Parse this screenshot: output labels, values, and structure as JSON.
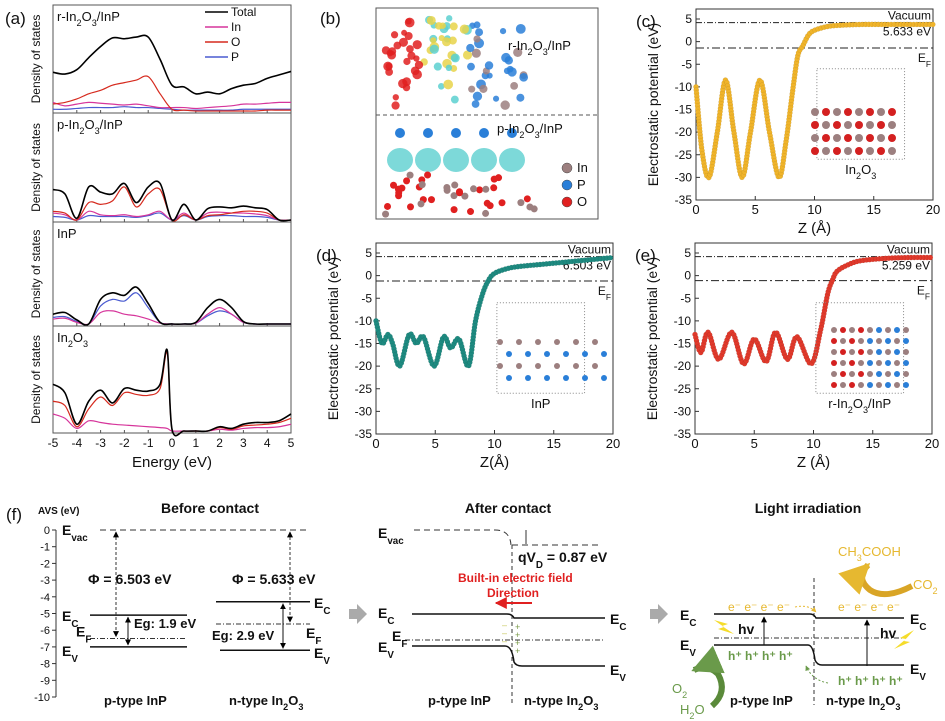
{
  "chart_data": [
    {
      "panel": "(a)",
      "type": "line",
      "xlabel": "Energy (eV)",
      "ylabel": "Density of states",
      "xlim": [
        -5,
        5
      ],
      "xticks": [
        "-5",
        "-4",
        "-3",
        "-2",
        "-1",
        "0",
        "1",
        "2",
        "3",
        "4",
        "5"
      ],
      "legend": [
        "Total",
        "In",
        "O",
        "P"
      ],
      "legend_colors": {
        "Total": "#000000",
        "In": "#d6359b",
        "O": "#d62a1e",
        "P": "#4a5bd0"
      },
      "legend_position": "top-right",
      "subplots": [
        {
          "label": "r-In2O3/InP",
          "x": [
            -5,
            -4.5,
            -4,
            -3.5,
            -3,
            -2.5,
            -2,
            -1.5,
            -1,
            -0.5,
            0,
            0.5,
            1,
            1.5,
            2,
            2.5,
            3,
            3.5,
            4,
            4.5,
            5
          ],
          "series": [
            {
              "name": "Total",
              "values": [
                0.45,
                0.43,
                0.48,
                0.62,
                0.75,
                0.85,
                0.84,
                0.86,
                0.86,
                0.6,
                0.3,
                0.28,
                0.2,
                0.22,
                0.2,
                0.26,
                0.3,
                0.32,
                0.38,
                0.42,
                0.46
              ]
            },
            {
              "name": "O",
              "values": [
                0.08,
                0.1,
                0.14,
                0.2,
                0.24,
                0.3,
                0.33,
                0.36,
                0.4,
                0.2,
                0.02,
                0.01,
                0.0,
                0.0,
                0.0,
                0.0,
                0.0,
                0.0,
                0.01,
                0.01,
                0.01
              ]
            },
            {
              "name": "In",
              "values": [
                0.1,
                0.06,
                0.08,
                0.1,
                0.09,
                0.08,
                0.07,
                0.08,
                0.06,
                0.04,
                0.04,
                0.04,
                0.03,
                0.04,
                0.05,
                0.06,
                0.08,
                0.08,
                0.09,
                0.1,
                0.1
              ]
            },
            {
              "name": "P",
              "values": [
                0.02,
                0.02,
                0.03,
                0.04,
                0.04,
                0.04,
                0.05,
                0.04,
                0.04,
                0.03,
                0.02,
                0.01,
                0.01,
                0.01,
                0.01,
                0.01,
                0.02,
                0.02,
                0.02,
                0.02,
                0.02
              ]
            }
          ]
        },
        {
          "label": "p-In2O3/InP",
          "x": [
            -5,
            -4.5,
            -4,
            -3.5,
            -3,
            -2.5,
            -2,
            -1.5,
            -1,
            -0.5,
            0,
            0.5,
            1,
            1.5,
            2,
            2.5,
            3,
            3.5,
            4,
            4.5,
            5
          ],
          "series": [
            {
              "name": "Total",
              "values": [
                0.35,
                0.3,
                0.02,
                0.38,
                0.32,
                0.3,
                0.42,
                0.2,
                0.38,
                0.42,
                0.0,
                0.18,
                0.0,
                0.13,
                0.15,
                0.14,
                0.16,
                0.14,
                0.12,
                0.0,
                0.0
              ]
            },
            {
              "name": "O",
              "values": [
                0.1,
                0.08,
                0.0,
                0.2,
                0.18,
                0.22,
                0.38,
                0.15,
                0.3,
                0.35,
                0.0,
                0.06,
                0.0,
                0.05,
                0.06,
                0.08,
                0.1,
                0.1,
                0.08,
                0.0,
                0.0
              ]
            },
            {
              "name": "In",
              "values": [
                0.08,
                0.06,
                0.0,
                0.1,
                0.06,
                0.05,
                0.06,
                0.04,
                0.06,
                0.1,
                0.0,
                0.08,
                0.0,
                0.08,
                0.09,
                0.08,
                0.08,
                0.07,
                0.05,
                0.0,
                0.0
              ]
            },
            {
              "name": "P",
              "values": [
                0.04,
                0.03,
                0.0,
                0.05,
                0.04,
                0.04,
                0.04,
                0.03,
                0.05,
                0.08,
                0.0,
                0.05,
                0.0,
                0.04,
                0.05,
                0.05,
                0.04,
                0.04,
                0.03,
                0.0,
                0.0
              ]
            }
          ]
        },
        {
          "label": "InP",
          "x": [
            -5,
            -4.5,
            -4,
            -3.5,
            -3,
            -2.5,
            -2,
            -1.5,
            -1,
            -0.5,
            0,
            0.5,
            1,
            1.5,
            2,
            2.5,
            3,
            3.5,
            4,
            4.5,
            5
          ],
          "series": [
            {
              "name": "Total",
              "values": [
                0.12,
                0.14,
                0.05,
                0.0,
                0.3,
                0.38,
                0.35,
                0.45,
                0.25,
                0.02,
                0.0,
                0.0,
                0.02,
                0.2,
                0.3,
                0.2,
                0.03,
                0.0,
                0.0,
                0.0,
                0.0
              ]
            },
            {
              "name": "In",
              "values": [
                0.06,
                0.07,
                0.02,
                0.0,
                0.14,
                0.16,
                0.12,
                0.1,
                0.06,
                0.01,
                0.0,
                0.0,
                0.01,
                0.12,
                0.2,
                0.12,
                0.02,
                0.0,
                0.0,
                0.0,
                0.0
              ]
            },
            {
              "name": "P",
              "values": [
                0.08,
                0.09,
                0.03,
                0.0,
                0.22,
                0.3,
                0.28,
                0.38,
                0.2,
                0.02,
                0.0,
                0.0,
                0.01,
                0.1,
                0.16,
                0.12,
                0.02,
                0.0,
                0.0,
                0.0,
                0.0
              ]
            }
          ]
        },
        {
          "label": "In2O3",
          "x": [
            -5,
            -4.5,
            -4,
            -3.5,
            -3,
            -2.5,
            -2,
            -1.5,
            -1,
            -0.5,
            -0.2,
            0,
            0.5,
            1,
            1.5,
            2,
            2.5,
            3,
            3.5,
            4,
            4.5,
            5
          ],
          "series": [
            {
              "name": "Total",
              "values": [
                0.55,
                0.45,
                0.08,
                0.35,
                0.48,
                0.33,
                0.5,
                0.48,
                0.47,
                0.55,
                0.95,
                0.02,
                0.0,
                0.0,
                0.0,
                0.05,
                0.03,
                0.08,
                0.1,
                0.1,
                0.12,
                0.2
              ]
            },
            {
              "name": "O",
              "values": [
                0.35,
                0.3,
                0.05,
                0.26,
                0.4,
                0.3,
                0.45,
                0.43,
                0.42,
                0.5,
                0.92,
                0.02,
                0.0,
                0.0,
                0.0,
                0.04,
                0.02,
                0.06,
                0.07,
                0.08,
                0.1,
                0.15
              ]
            },
            {
              "name": "In",
              "values": [
                0.2,
                0.15,
                0.03,
                0.12,
                0.1,
                0.08,
                0.07,
                0.06,
                0.05,
                0.04,
                0.03,
                0.0,
                0.0,
                0.0,
                0.0,
                0.02,
                0.01,
                0.03,
                0.04,
                0.04,
                0.05,
                0.08
              ]
            }
          ]
        }
      ]
    },
    {
      "panel": "(b)",
      "type": "image",
      "labels": [
        "r-In2O3/InP",
        "p-In2O3/InP"
      ],
      "legend": [
        {
          "name": "In",
          "color": "#9c7f7f"
        },
        {
          "name": "P",
          "color": "#2a7fd8"
        },
        {
          "name": "O",
          "color": "#e02020"
        }
      ]
    },
    {
      "panel": "(c)",
      "type": "scatter",
      "xlabel": "Z (Å)",
      "ylabel": "Electrostatic potential (eV)",
      "xlim": [
        0,
        20
      ],
      "ylim": [
        -35,
        5
      ],
      "xticks": [
        "0",
        "5",
        "10",
        "15",
        "20"
      ],
      "yticks": [
        "5",
        "0",
        "-5",
        "-10",
        "-15",
        "-20",
        "-25",
        "-30",
        "-35"
      ],
      "color": "#f0b42a",
      "vacuum_level": 4.2,
      "fermi_level": -1.4,
      "annotations": [
        "Vacuum",
        "5.633 eV",
        "E_F"
      ],
      "inset_label": "In2O3",
      "x": [
        0,
        0.5,
        1.1,
        1.8,
        2.5,
        3.2,
        3.9,
        4.6,
        5.4,
        6.2,
        7.0,
        7.6,
        8.2,
        8.6,
        9.0,
        9.5,
        10,
        11,
        12,
        14,
        16,
        18,
        20
      ],
      "values": [
        -10,
        -24,
        -30,
        -20,
        -8.5,
        -20,
        -30,
        -20,
        -8.5,
        -20,
        -30,
        -22,
        -10,
        -3,
        -1,
        1.5,
        2.5,
        3.3,
        3.6,
        3.8,
        3.8,
        3.8,
        3.8
      ]
    },
    {
      "panel": "(d)",
      "type": "scatter",
      "xlabel": "Z(Å)",
      "ylabel": "Electrostatic potential (eV)",
      "xlim": [
        0,
        20
      ],
      "ylim": [
        -35,
        5
      ],
      "xticks": [
        "0",
        "5",
        "10",
        "15",
        "20"
      ],
      "yticks": [
        "5",
        "0",
        "-5",
        "-10",
        "-15",
        "-20",
        "-25",
        "-30",
        "-35"
      ],
      "color": "#1e8a80",
      "vacuum_level": 4.2,
      "fermi_level": -1.2,
      "annotations": [
        "Vacuum",
        "6.503 eV",
        "E_F"
      ],
      "inset_label": "InP",
      "x": [
        0,
        0.5,
        1.0,
        1.4,
        2.0,
        2.8,
        3.4,
        4.0,
        4.9,
        5.7,
        6.3,
        7.0,
        7.8,
        8.4,
        9.0,
        9.5,
        10,
        11,
        12,
        14,
        16,
        18,
        20
      ],
      "values": [
        -10,
        -15,
        -13,
        -15,
        -20,
        -13,
        -15,
        -13.5,
        -20,
        -13.5,
        -16,
        -14,
        -20,
        -10,
        -4,
        -1,
        0.5,
        1.5,
        2,
        2.5,
        3,
        3.5,
        4
      ]
    },
    {
      "panel": "(e)",
      "type": "scatter",
      "xlabel": "Z (Å)",
      "ylabel": "Electrostatic potential (eV)",
      "xlim": [
        0,
        20
      ],
      "ylim": [
        -35,
        5
      ],
      "xticks": [
        "0",
        "5",
        "10",
        "15",
        "20"
      ],
      "yticks": [
        "5",
        "0",
        "-5",
        "-10",
        "-15",
        "-20",
        "-25",
        "-30",
        "-35"
      ],
      "color": "#e0392b",
      "vacuum_level": 4.2,
      "fermi_level": -1.1,
      "annotations": [
        "Vacuum",
        "5.259 eV",
        "E_F"
      ],
      "inset_label": "r-In2O3/InP",
      "x": [
        0,
        0.5,
        1.1,
        2.0,
        3.1,
        4.1,
        5.0,
        6.0,
        6.8,
        7.8,
        8.6,
        9.8,
        10.6,
        11.2,
        11.6,
        12,
        13,
        14,
        16,
        18,
        20
      ],
      "values": [
        -13,
        -17,
        -12.5,
        -18.5,
        -12.5,
        -19.5,
        -14,
        -19,
        -12.5,
        -18.5,
        -13.5,
        -19.5,
        -12,
        -4,
        -1,
        1,
        2.5,
        3.3,
        3.8,
        4,
        4
      ]
    },
    {
      "panel": "(f)",
      "type": "diagram",
      "yaxis_label": "AVS (eV)",
      "ylim": [
        -10,
        0
      ],
      "yticks": [
        "0",
        "-1",
        "-2",
        "-3",
        "-4",
        "-5",
        "-6",
        "-7",
        "-8",
        "-9",
        "-10"
      ],
      "before": {
        "title": "Before contact",
        "InP": {
          "Ec": -5.1,
          "Ef": -6.5,
          "Ev": -7.0,
          "phi": "Φ = 6.503 eV",
          "eg": "Eg: 1.9 eV",
          "label": "p-type InP"
        },
        "In2O3": {
          "Ec": -4.3,
          "Ef": -5.63,
          "Ev": -7.2,
          "phi": "Φ = 5.633 eV",
          "eg": "Eg: 2.9 eV",
          "label": "n-type In2O3"
        }
      },
      "after": {
        "title": "After contact",
        "qvd": "qV_D = 0.87 eV",
        "field1": "Built-in electric field",
        "field2": "Direction",
        "left_label": "p-type InP",
        "right_label": "n-type In2O3"
      },
      "light": {
        "title": "Light irradiation",
        "electrons": "e⁻ e⁻ e⁻ e⁻",
        "holes": "h⁺ h⁺ h⁺ h⁺",
        "hv": "hv",
        "product1": "CH3COOH",
        "reactant1": "CO2",
        "product2": "O2",
        "reactant2": "H2O",
        "left_label": "p-type InP",
        "right_label": "n-type In2O3"
      }
    }
  ]
}
